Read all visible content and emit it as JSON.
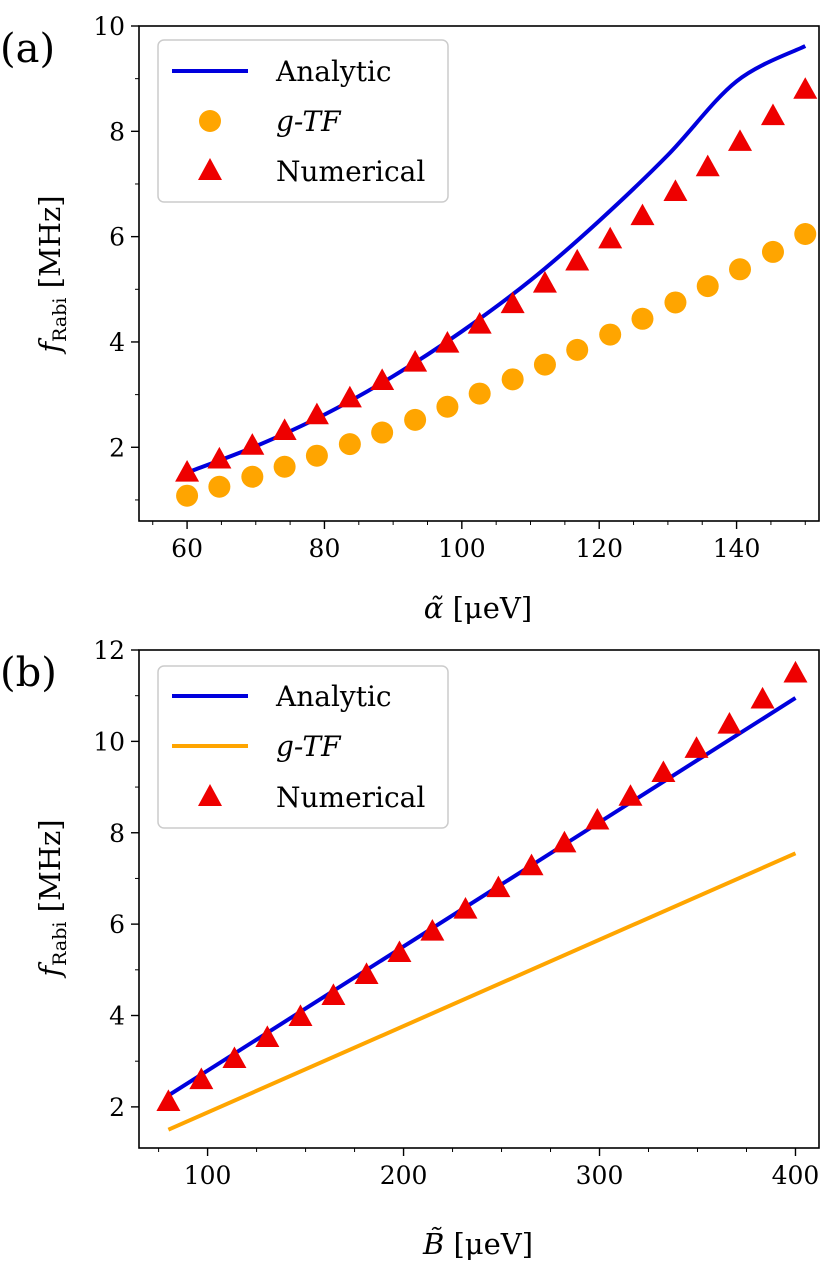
{
  "chart_data": [
    {
      "panel": "(a)",
      "type": "line+scatter",
      "xlabel_main": "α̃",
      "xlabel_unit": " [μeV]",
      "ylabel_main": "f",
      "ylabel_sub": "Rabi",
      "ylabel_unit": " [MHz]",
      "xlim": [
        53,
        152
      ],
      "ylim": [
        0.6,
        10
      ],
      "xticks": [
        60,
        80,
        100,
        120,
        140
      ],
      "yticks": [
        2,
        4,
        6,
        8,
        10
      ],
      "legend": {
        "position": "top-left",
        "entries": [
          "Analytic",
          "g-TF",
          "Numerical"
        ]
      },
      "series": [
        {
          "name": "Analytic",
          "kind": "line",
          "color": "#0000dd",
          "x": [
            60,
            70,
            80,
            90,
            100,
            110,
            120,
            130,
            140,
            150
          ],
          "y": [
            1.52,
            2.02,
            2.62,
            3.35,
            4.2,
            5.17,
            6.3,
            7.55,
            8.95,
            9.62
          ]
        },
        {
          "name": "g-TF",
          "kind": "scatter",
          "marker": "circle",
          "color": "#ffa500",
          "x": [
            60,
            64.7,
            69.5,
            74.2,
            78.9,
            83.7,
            88.4,
            93.2,
            97.9,
            102.6,
            107.4,
            112.1,
            116.8,
            121.6,
            126.3,
            131.1,
            135.8,
            140.5,
            145.3,
            150
          ],
          "y": [
            1.08,
            1.25,
            1.44,
            1.63,
            1.84,
            2.06,
            2.28,
            2.52,
            2.77,
            3.02,
            3.29,
            3.57,
            3.85,
            4.14,
            4.44,
            4.75,
            5.06,
            5.38,
            5.71,
            6.05
          ]
        },
        {
          "name": "Numerical",
          "kind": "scatter",
          "marker": "triangle",
          "color": "#ee0000",
          "x": [
            60,
            64.7,
            69.5,
            74.2,
            78.9,
            83.7,
            88.4,
            93.2,
            97.9,
            102.6,
            107.4,
            112.1,
            116.8,
            121.6,
            126.3,
            131.1,
            135.8,
            140.5,
            145.3,
            150
          ],
          "y": [
            1.53,
            1.78,
            2.04,
            2.32,
            2.62,
            2.94,
            3.27,
            3.62,
            3.98,
            4.34,
            4.73,
            5.12,
            5.54,
            5.96,
            6.4,
            6.86,
            7.33,
            7.81,
            8.3,
            8.8
          ]
        }
      ]
    },
    {
      "panel": "(b)",
      "type": "line+scatter",
      "xlabel_main": "B̃",
      "xlabel_unit": " [μeV]",
      "ylabel_main": "f",
      "ylabel_sub": "Rabi",
      "ylabel_unit": " [MHz]",
      "xlim": [
        65,
        412
      ],
      "ylim": [
        1.1,
        12
      ],
      "xticks": [
        100,
        200,
        300,
        400
      ],
      "yticks": [
        2,
        4,
        6,
        8,
        10,
        12
      ],
      "legend": {
        "position": "top-left",
        "entries": [
          "Analytic",
          "g-TF",
          "Numerical"
        ]
      },
      "series": [
        {
          "name": "Analytic",
          "kind": "line",
          "color": "#0000dd",
          "x": [
            80,
            400
          ],
          "y": [
            2.25,
            10.95
          ]
        },
        {
          "name": "g-TF",
          "kind": "line",
          "color": "#ffa500",
          "x": [
            80,
            400
          ],
          "y": [
            1.5,
            7.55
          ]
        },
        {
          "name": "Numerical",
          "kind": "scatter",
          "marker": "triangle",
          "color": "#ee0000",
          "x": [
            80,
            96.8,
            113.7,
            130.5,
            147.4,
            164.2,
            181.1,
            197.9,
            214.7,
            231.6,
            248.4,
            265.3,
            282.1,
            298.9,
            315.8,
            332.6,
            349.5,
            366.3,
            383.2,
            400
          ],
          "y": [
            2.12,
            2.6,
            3.06,
            3.52,
            3.98,
            4.44,
            4.9,
            5.38,
            5.85,
            6.33,
            6.8,
            7.28,
            7.78,
            8.28,
            8.8,
            9.32,
            9.85,
            10.38,
            10.93,
            11.5
          ]
        }
      ]
    }
  ]
}
